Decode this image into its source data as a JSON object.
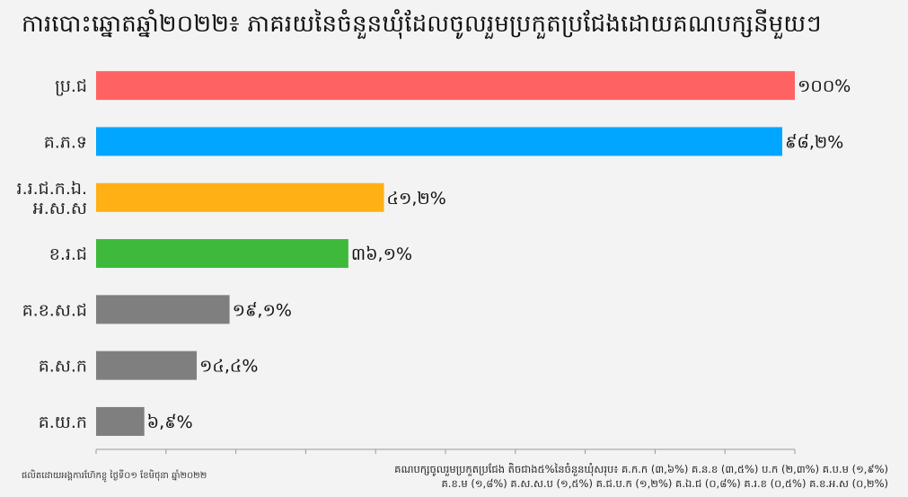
{
  "title": "ការបោះឆ្នោតឆ្នាំ២០២២៖ ភាគរយនៃចំនួនឃុំដែលចូលរួមប្រកួតប្រជែងដោយគណបក្សនីមួយៗ",
  "source": "ផលិតដោយអង្គការហ៊ែកខ្លូ ថ្ងៃទី០១ ខែមិថុនា ឆ្នាំ២០២២",
  "note_lines": [
    "គណបក្សចូលរួមប្រកួតប្រជែង តិចជាង៥%នៃចំនួនឃុំសរុប៖ គ.ក.ក (៣,៦%) គ.ន.ខ (៣,៥%) ប.ក (២,៣%) គ.ប.ម (១,៩%)",
    "គ.ខ.ម (១,៨%) គ.ស.ស.ប (១,៥%) គ.ជ.ប.ក (១,២%) គ.ឯ.ជ (០,៨%) គ.រ.ខ (០,៥%) គ.ខ.អ.ស (០,២%)"
  ],
  "chart_data": {
    "type": "bar",
    "orientation": "horizontal",
    "categories": [
      [
        "ប្រ.ជ"
      ],
      [
        "គ.ភ.ទ"
      ],
      [
        "រ.រ.ជ.ក.ឯ.",
        "អ.ស.ស"
      ],
      [
        "ខ.រ.ជ"
      ],
      [
        "គ.ខ.ស.ជ"
      ],
      [
        "គ.ស.ក"
      ],
      [
        "គ.យ.ក"
      ]
    ],
    "values": [
      100,
      98.2,
      41.2,
      36.1,
      19.1,
      14.4,
      6.9
    ],
    "value_labels": [
      "១០០%",
      "៩៨,២%",
      "៤១,២%",
      "៣៦,១%",
      "១៩,១%",
      "១៤,៤%",
      "៦,៩%"
    ],
    "colors": [
      "#ff6262",
      "#00a6ff",
      "#ffb014",
      "#3fb93b",
      "#7f7f7f",
      "#7f7f7f",
      "#7f7f7f"
    ],
    "xlim": [
      0,
      100
    ],
    "grid": false,
    "legend": "none"
  }
}
